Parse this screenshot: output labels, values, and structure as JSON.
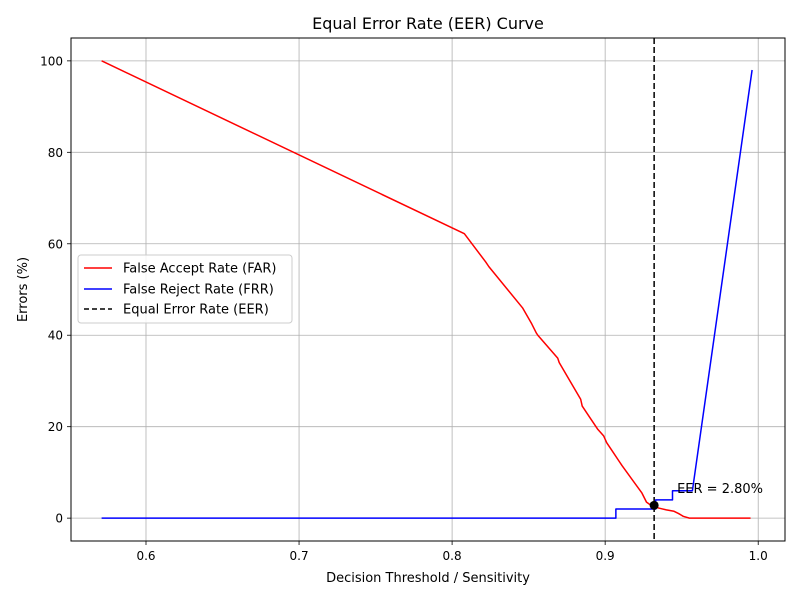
{
  "chart_data": {
    "type": "line",
    "title": "Equal Error Rate (EER) Curve",
    "xlabel": "Decision Threshold / Sensitivity",
    "ylabel": "Errors (%)",
    "xlim": [
      0.551,
      1.0175
    ],
    "ylim": [
      -5,
      105
    ],
    "xticks": [
      0.6,
      0.7,
      0.8,
      0.9,
      1.0
    ],
    "xtick_labels": [
      "0.6",
      "0.7",
      "0.8",
      "0.9",
      "1.0"
    ],
    "yticks": [
      0,
      20,
      40,
      60,
      80,
      100
    ],
    "ytick_labels": [
      "0",
      "20",
      "40",
      "60",
      "80",
      "100"
    ],
    "grid": true,
    "legend_position": "center-left",
    "series": [
      {
        "name": "False Accept Rate (FAR)",
        "color": "#ff0000",
        "style": "solid",
        "x": [
          0.571,
          0.808,
          0.822,
          0.824,
          0.846,
          0.852,
          0.855,
          0.856,
          0.869,
          0.87,
          0.884,
          0.885,
          0.89,
          0.895,
          0.899,
          0.901,
          0.905,
          0.909,
          0.911,
          0.924,
          0.927,
          0.93,
          0.935,
          0.94,
          0.945,
          0.948,
          0.95,
          0.951,
          0.955,
          0.958,
          0.965,
          0.995
        ],
        "y": [
          100,
          62.2,
          56,
          55,
          46,
          42.5,
          40.5,
          40,
          35,
          34,
          26,
          24.5,
          22,
          19.5,
          18,
          16.5,
          14.5,
          12.5,
          11.5,
          5.5,
          3.5,
          2.8,
          2.2,
          1.8,
          1.5,
          1.0,
          0.6,
          0.4,
          0,
          0,
          0,
          0
        ]
      },
      {
        "name": "False Reject Rate (FRR)",
        "color": "#0000ff",
        "style": "solid",
        "x": [
          0.571,
          0.907,
          0.907,
          0.933,
          0.933,
          0.944,
          0.944,
          0.957,
          0.996
        ],
        "y": [
          0,
          0,
          2,
          2,
          4,
          4,
          6,
          6,
          98
        ]
      },
      {
        "name": "Equal Error Rate (EER)",
        "color": "#000000",
        "style": "dashed",
        "vline_x": 0.932
      }
    ],
    "eer_point": {
      "x": 0.932,
      "y": 2.8
    },
    "annotations": [
      {
        "text": "EER = 2.80%",
        "x": 0.947,
        "y": 5.5
      }
    ]
  }
}
